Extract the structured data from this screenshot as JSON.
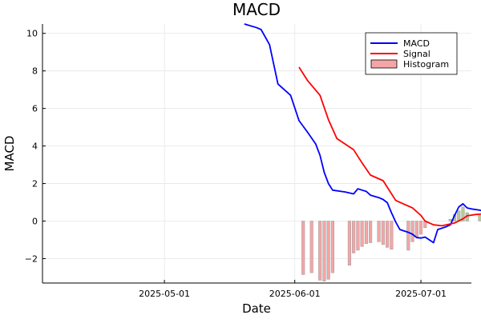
{
  "chart_data": {
    "type": "line",
    "title": "MACD",
    "xlabel": "Date",
    "ylabel": "MACD",
    "x_axis_type": "date",
    "xlim": [
      "2025-04-02",
      "2025-07-13"
    ],
    "ylim": [
      -3.3,
      10.5
    ],
    "x_ticks": [
      "2025-05-01",
      "2025-06-01",
      "2025-07-01"
    ],
    "y_ticks": [
      -2,
      0,
      2,
      4,
      6,
      8,
      10
    ],
    "grid": true,
    "legend_position": "top-right",
    "colors": {
      "macd": "#0000ff",
      "signal": "#ff0000",
      "histogram_fill": "#f4a6a6",
      "histogram_positive_fill": "#b9c79a",
      "histogram_edge": "#999999"
    },
    "series": [
      {
        "name": "MACD",
        "type": "line",
        "points": [
          [
            "2025-05-20",
            10.5
          ],
          [
            "2025-05-23",
            10.3
          ],
          [
            "2025-05-24",
            10.2
          ],
          [
            "2025-05-26",
            9.4
          ],
          [
            "2025-05-28",
            7.3
          ],
          [
            "2025-05-31",
            6.7
          ],
          [
            "2025-06-02",
            5.35
          ],
          [
            "2025-06-04",
            4.75
          ],
          [
            "2025-06-06",
            4.1
          ],
          [
            "2025-06-07",
            3.5
          ],
          [
            "2025-06-08",
            2.6
          ],
          [
            "2025-06-09",
            2.0
          ],
          [
            "2025-06-10",
            1.65
          ],
          [
            "2025-06-13",
            1.55
          ],
          [
            "2025-06-15",
            1.45
          ],
          [
            "2025-06-16",
            1.72
          ],
          [
            "2025-06-17",
            1.65
          ],
          [
            "2025-06-18",
            1.58
          ],
          [
            "2025-06-19",
            1.38
          ],
          [
            "2025-06-21",
            1.25
          ],
          [
            "2025-06-22",
            1.15
          ],
          [
            "2025-06-23",
            0.98
          ],
          [
            "2025-06-24",
            0.45
          ],
          [
            "2025-06-25",
            -0.05
          ],
          [
            "2025-06-26",
            -0.45
          ],
          [
            "2025-06-28",
            -0.6
          ],
          [
            "2025-06-29",
            -0.7
          ],
          [
            "2025-06-30",
            -0.88
          ],
          [
            "2025-07-01",
            -0.9
          ],
          [
            "2025-07-02",
            -0.85
          ],
          [
            "2025-07-03",
            -1.0
          ],
          [
            "2025-07-04",
            -1.15
          ],
          [
            "2025-07-05",
            -0.45
          ],
          [
            "2025-07-07",
            -0.3
          ],
          [
            "2025-07-08",
            -0.2
          ],
          [
            "2025-07-09",
            0.3
          ],
          [
            "2025-07-10",
            0.75
          ],
          [
            "2025-07-11",
            0.92
          ],
          [
            "2025-07-12",
            0.7
          ],
          [
            "2025-07-13",
            0.65
          ],
          [
            "2025-07-15",
            0.58
          ],
          [
            "2025-07-16",
            0.52
          ],
          [
            "2025-07-17",
            0.4
          ]
        ]
      },
      {
        "name": "Signal",
        "type": "line",
        "points": [
          [
            "2025-06-02",
            8.2
          ],
          [
            "2025-06-04",
            7.5
          ],
          [
            "2025-06-07",
            6.7
          ],
          [
            "2025-06-09",
            5.4
          ],
          [
            "2025-06-11",
            4.4
          ],
          [
            "2025-06-15",
            3.8
          ],
          [
            "2025-06-17",
            3.1
          ],
          [
            "2025-06-19",
            2.45
          ],
          [
            "2025-06-22",
            2.15
          ],
          [
            "2025-06-25",
            1.1
          ],
          [
            "2025-06-29",
            0.7
          ],
          [
            "2025-07-01",
            0.3
          ],
          [
            "2025-07-02",
            0.0
          ],
          [
            "2025-07-04",
            -0.2
          ],
          [
            "2025-07-06",
            -0.25
          ],
          [
            "2025-07-07",
            -0.2
          ],
          [
            "2025-07-09",
            -0.1
          ],
          [
            "2025-07-11",
            0.12
          ],
          [
            "2025-07-12",
            0.28
          ],
          [
            "2025-07-14",
            0.35
          ],
          [
            "2025-07-17",
            0.4
          ]
        ]
      },
      {
        "name": "Histogram",
        "type": "bar",
        "points": [
          [
            "2025-06-03",
            -2.85
          ],
          [
            "2025-06-05",
            -2.75
          ],
          [
            "2025-06-07",
            -3.15
          ],
          [
            "2025-06-08",
            -3.2
          ],
          [
            "2025-06-09",
            -3.1
          ],
          [
            "2025-06-10",
            -2.75
          ],
          [
            "2025-06-14",
            -2.35
          ],
          [
            "2025-06-15",
            -1.7
          ],
          [
            "2025-06-16",
            -1.55
          ],
          [
            "2025-06-17",
            -1.35
          ],
          [
            "2025-06-18",
            -1.2
          ],
          [
            "2025-06-19",
            -1.15
          ],
          [
            "2025-06-21",
            -1.1
          ],
          [
            "2025-06-22",
            -1.25
          ],
          [
            "2025-06-23",
            -1.4
          ],
          [
            "2025-06-24",
            -1.5
          ],
          [
            "2025-06-28",
            -1.55
          ],
          [
            "2025-06-29",
            -1.1
          ],
          [
            "2025-06-30",
            -0.85
          ],
          [
            "2025-07-01",
            -0.7
          ],
          [
            "2025-07-02",
            -0.35
          ],
          [
            "2025-07-08",
            0.1
          ],
          [
            "2025-07-09",
            0.35
          ],
          [
            "2025-07-10",
            0.55
          ],
          [
            "2025-07-11",
            0.75
          ],
          [
            "2025-07-12",
            0.45
          ],
          [
            "2025-07-15",
            0.3
          ],
          [
            "2025-07-16",
            0.12
          ]
        ]
      }
    ]
  }
}
